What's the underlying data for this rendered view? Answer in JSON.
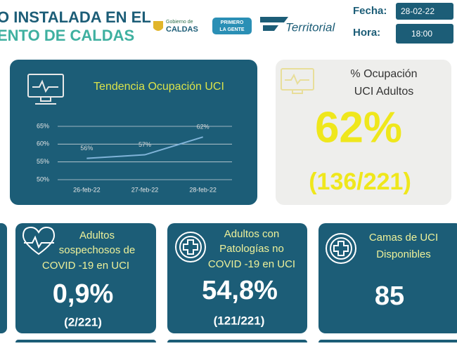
{
  "header": {
    "title_lines": [
      "O INSTALADA EN EL",
      "ENTO DE CALDAS"
    ],
    "logos": {
      "gobierno_small": "Gobierno de",
      "gobierno": "CALDAS",
      "primero": [
        "PRIMERO",
        "LA GENTE"
      ],
      "territorial": "Territorial"
    },
    "date_label": "Fecha:",
    "date": "28-02-22",
    "time_label": "Hora:",
    "time": "18:00"
  },
  "chart_data": {
    "type": "line",
    "title": "Tendencia Ocupación UCI",
    "categories": [
      "26-feb-22",
      "27-feb-22",
      "28-feb-22"
    ],
    "values": [
      56,
      57,
      62
    ],
    "value_labels": [
      "56%",
      "57%",
      "62%"
    ],
    "color": "#7fb3d8",
    "ylim": [
      50,
      65
    ],
    "yticks": [
      {
        "value": 50,
        "label": "50%"
      },
      {
        "value": 55,
        "label": "55%"
      },
      {
        "value": 60,
        "label": "60%"
      },
      {
        "value": 65,
        "label": "65%"
      }
    ],
    "grid": true
  },
  "occupancy": {
    "title_lines": [
      "% Ocupación",
      "UCI Adultos"
    ],
    "value": "62%",
    "fraction": "(136/221)"
  },
  "cards": [
    {
      "title_lines": [
        "Adultos",
        "sospechosos de",
        "COVID -19 en UCI"
      ],
      "value": "0,9%",
      "fraction": "(2/221)"
    },
    {
      "title_lines": [
        "Adultos con",
        "Patologías no",
        "COVID -19 en UCI"
      ],
      "value": "54,8%",
      "fraction": "(121/221)"
    },
    {
      "title_lines": [
        "Camas de UCI",
        "Disponibles"
      ],
      "value": "85"
    }
  ]
}
